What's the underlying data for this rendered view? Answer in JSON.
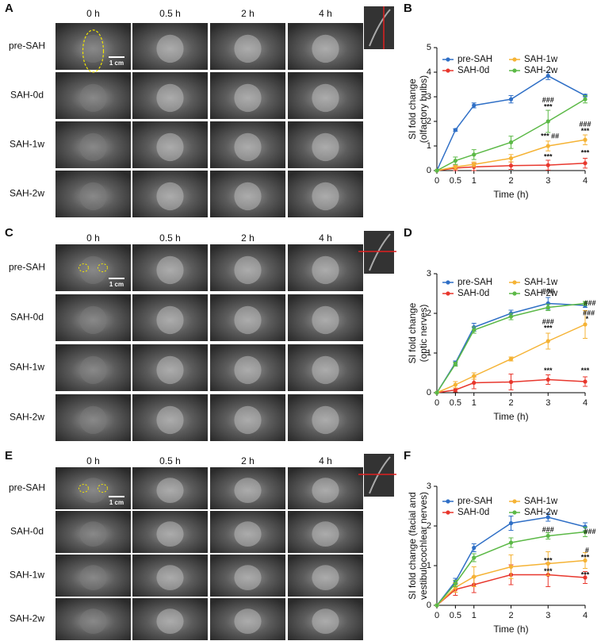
{
  "panels": [
    {
      "letter": "A",
      "columns": [
        "0 h",
        "0.5 h",
        "2 h",
        "4 h"
      ],
      "rows": [
        "pre-SAH",
        "SAH-0d",
        "SAH-1w",
        "SAH-2w"
      ],
      "scale_bar": "1 cm"
    },
    {
      "letter": "C",
      "columns": [
        "0 h",
        "0.5 h",
        "2 h",
        "4 h"
      ],
      "rows": [
        "pre-SAH",
        "SAH-0d",
        "SAH-1w",
        "SAH-2w"
      ],
      "scale_bar": "1 cm"
    },
    {
      "letter": "E",
      "columns": [
        "0 h",
        "0.5 h",
        "2 h",
        "4 h"
      ],
      "rows": [
        "pre-SAH",
        "SAH-0d",
        "SAH-1w",
        "SAH-2w"
      ],
      "scale_bar": "1 cm"
    }
  ],
  "chart_data": [
    {
      "type": "line",
      "panel": "B",
      "ylabel": [
        "SI fold change",
        "(olfactory bulbs)"
      ],
      "xlabel": "Time (h)",
      "x": [
        0,
        0.5,
        1,
        2,
        3,
        4
      ],
      "xlim": [
        0,
        4
      ],
      "xticks": [
        0,
        0.5,
        1,
        2,
        3,
        4
      ],
      "ylim": [
        0,
        5
      ],
      "yticks": [
        0,
        1,
        2,
        3,
        4,
        5
      ],
      "series": [
        {
          "name": "pre-SAH",
          "color": "#2f6fc6",
          "values": [
            0,
            1.65,
            2.65,
            2.9,
            3.85,
            3.05
          ],
          "errors": [
            0,
            0.05,
            0.1,
            0.15,
            0.15,
            0.05
          ]
        },
        {
          "name": "SAH-0d",
          "color": "#e8372d",
          "values": [
            0,
            0.1,
            0.15,
            0.2,
            0.22,
            0.3
          ],
          "errors": [
            0,
            0.1,
            0.15,
            0.15,
            0.2,
            0.2
          ]
        },
        {
          "name": "SAH-1w",
          "color": "#f5b335",
          "values": [
            0,
            0.15,
            0.25,
            0.5,
            1.0,
            1.25
          ],
          "errors": [
            0,
            0.1,
            0.1,
            0.15,
            0.2,
            0.2
          ]
        },
        {
          "name": "SAH-2w",
          "color": "#5cb947",
          "values": [
            0,
            0.4,
            0.65,
            1.15,
            2.0,
            2.9
          ],
          "errors": [
            0,
            0.15,
            0.2,
            0.25,
            0.45,
            0.15
          ]
        }
      ],
      "annotations": [
        "###",
        "***",
        "*** ##",
        "***",
        "###",
        "***",
        "***"
      ]
    },
    {
      "type": "line",
      "panel": "D",
      "ylabel": [
        "SI fold change",
        "(optic nerves)"
      ],
      "xlabel": "Time (h)",
      "x": [
        0,
        0.5,
        1,
        2,
        3,
        4
      ],
      "xlim": [
        0,
        4
      ],
      "xticks": [
        0,
        0.5,
        1,
        2,
        3,
        4
      ],
      "ylim": [
        0,
        3
      ],
      "yticks": [
        0,
        1,
        2,
        3
      ],
      "series": [
        {
          "name": "pre-SAH",
          "color": "#2f6fc6",
          "values": [
            0,
            0.75,
            1.65,
            2.0,
            2.25,
            2.2
          ],
          "errors": [
            0,
            0.05,
            0.1,
            0.08,
            0.15,
            0.05
          ]
        },
        {
          "name": "SAH-0d",
          "color": "#e8372d",
          "values": [
            0,
            0.07,
            0.25,
            0.27,
            0.33,
            0.28
          ],
          "errors": [
            0,
            0.05,
            0.15,
            0.2,
            0.12,
            0.12
          ]
        },
        {
          "name": "SAH-1w",
          "color": "#f5b335",
          "values": [
            0,
            0.2,
            0.42,
            0.85,
            1.3,
            1.72
          ],
          "errors": [
            0,
            0.08,
            0.08,
            0.05,
            0.2,
            0.35
          ]
        },
        {
          "name": "SAH-2w",
          "color": "#5cb947",
          "values": [
            0,
            0.72,
            1.58,
            1.92,
            2.15,
            2.25
          ],
          "errors": [
            0,
            0.05,
            0.08,
            0.08,
            0.08,
            0.05
          ]
        }
      ],
      "annotations": [
        "###",
        "###",
        "***",
        "***",
        "###",
        "###",
        "*",
        "***"
      ]
    },
    {
      "type": "line",
      "panel": "F",
      "ylabel": [
        "SI fold change (facial and",
        "vestibulocochlear nerves)"
      ],
      "xlabel": "Time (h)",
      "x": [
        0,
        0.5,
        1,
        2,
        3,
        4
      ],
      "xlim": [
        0,
        4
      ],
      "xticks": [
        0,
        0.5,
        1,
        2,
        3,
        4
      ],
      "ylim": [
        0,
        3
      ],
      "yticks": [
        0,
        1,
        2,
        3
      ],
      "series": [
        {
          "name": "pre-SAH",
          "color": "#2f6fc6",
          "values": [
            0,
            0.6,
            1.45,
            2.07,
            2.22,
            1.98
          ],
          "errors": [
            0,
            0.08,
            0.1,
            0.18,
            0.1,
            0.1
          ]
        },
        {
          "name": "SAH-0d",
          "color": "#e8372d",
          "values": [
            0,
            0.4,
            0.52,
            0.77,
            0.77,
            0.7
          ],
          "errors": [
            0,
            0.15,
            0.2,
            0.25,
            0.3,
            0.15
          ]
        },
        {
          "name": "SAH-1w",
          "color": "#f5b335",
          "values": [
            0,
            0.45,
            0.72,
            0.97,
            1.05,
            1.13
          ],
          "errors": [
            0,
            0.12,
            0.25,
            0.3,
            0.3,
            0.2
          ]
        },
        {
          "name": "SAH-2w",
          "color": "#5cb947",
          "values": [
            0,
            0.55,
            1.2,
            1.58,
            1.75,
            1.85
          ],
          "errors": [
            0,
            0.08,
            0.1,
            0.12,
            0.08,
            0.12
          ]
        }
      ],
      "annotations": [
        "###",
        "###",
        "#",
        "***",
        "***",
        "***",
        "***"
      ]
    }
  ]
}
